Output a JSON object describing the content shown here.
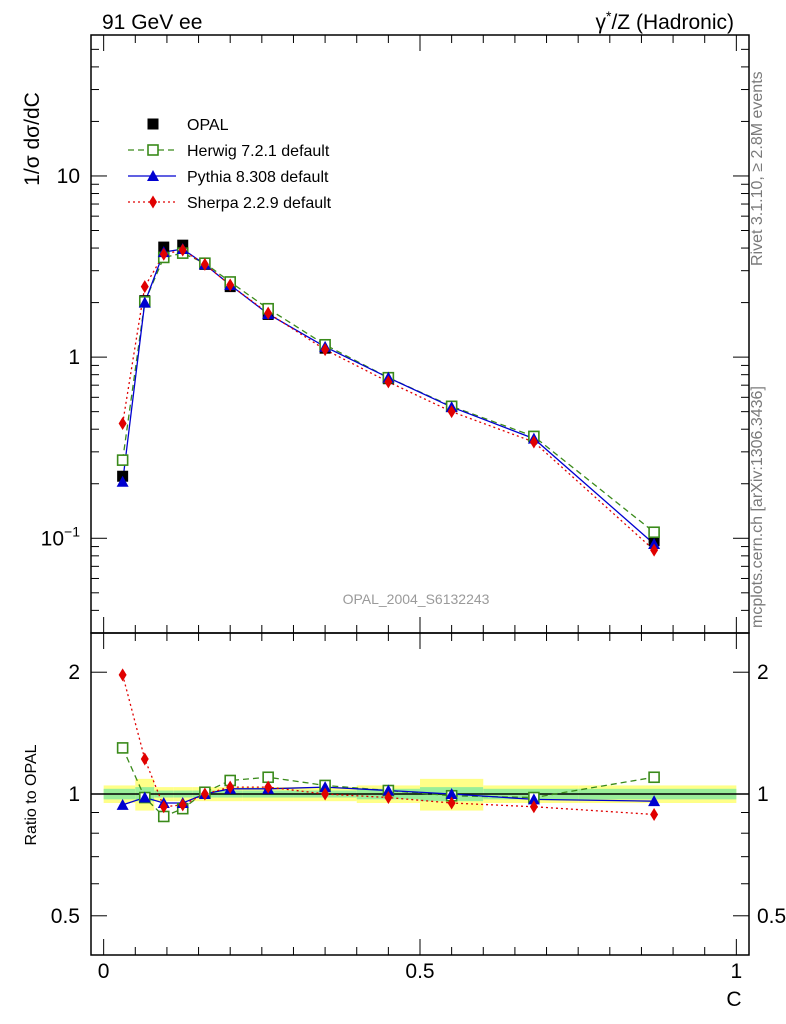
{
  "header": {
    "left_title": "91 GeV ee",
    "right_title_prefix": "γ",
    "right_title_sup": "*",
    "right_title_suffix": "/Z (Hadronic)"
  },
  "side_text": {
    "top": "Rivet 3.1.10, ≥ 2.8M events",
    "bottom": "mcplots.cern.ch [arXiv:1306.3436]"
  },
  "watermark": "OPAL_2004_S6132243",
  "chart_data": [
    {
      "type": "line",
      "panel": "main",
      "ylabel": "1/σ dσ/dC",
      "yscale": "log",
      "ylim": [
        0.03,
        60
      ],
      "xlim": [
        -0.02,
        1.02
      ],
      "yticks": [
        {
          "value": 10,
          "label": "10"
        },
        {
          "value": 1,
          "label": "1"
        },
        {
          "value": 0.1,
          "label": "10",
          "sup": "−1"
        }
      ],
      "legend": {
        "position": "top-left"
      },
      "series": [
        {
          "name": "OPAL",
          "color": "#000000",
          "marker": "square",
          "line": "none",
          "x": [
            0.03,
            0.065,
            0.095,
            0.125,
            0.16,
            0.2,
            0.26,
            0.35,
            0.45,
            0.55,
            0.68,
            0.87
          ],
          "values": [
            0.22,
            2.05,
            4.05,
            4.15,
            3.25,
            2.45,
            1.72,
            1.12,
            0.76,
            0.535,
            0.365,
            0.097
          ]
        },
        {
          "name": "Herwig 7.2.1 default",
          "color": "#3a8a1a",
          "marker": "open-square",
          "line": "dashed",
          "x": [
            0.03,
            0.065,
            0.095,
            0.125,
            0.16,
            0.2,
            0.26,
            0.35,
            0.45,
            0.55,
            0.68,
            0.87
          ],
          "values": [
            0.27,
            2.02,
            3.55,
            3.75,
            3.3,
            2.6,
            1.85,
            1.17,
            0.77,
            0.535,
            0.365,
            0.108
          ]
        },
        {
          "name": "Pythia 8.308 default",
          "color": "#0000d0",
          "marker": "triangle",
          "line": "solid",
          "x": [
            0.03,
            0.065,
            0.095,
            0.125,
            0.16,
            0.2,
            0.26,
            0.35,
            0.45,
            0.55,
            0.68,
            0.87
          ],
          "values": [
            0.205,
            2.0,
            3.8,
            3.95,
            3.25,
            2.5,
            1.73,
            1.14,
            0.77,
            0.53,
            0.355,
            0.093
          ]
        },
        {
          "name": "Sherpa 2.2.9 default",
          "color": "#e00000",
          "marker": "diamond",
          "line": "dotted",
          "x": [
            0.03,
            0.065,
            0.095,
            0.125,
            0.16,
            0.2,
            0.26,
            0.35,
            0.45,
            0.55,
            0.68,
            0.87
          ],
          "values": [
            0.43,
            2.45,
            3.7,
            3.9,
            3.25,
            2.5,
            1.75,
            1.1,
            0.73,
            0.5,
            0.34,
            0.086
          ]
        }
      ]
    },
    {
      "type": "line",
      "panel": "ratio",
      "ylabel": "Ratio to OPAL",
      "xlabel": "C",
      "yscale": "log",
      "ylim": [
        0.4,
        2.5
      ],
      "xlim": [
        -0.02,
        1.02
      ],
      "yticks": [
        {
          "value": 2,
          "label": "2"
        },
        {
          "value": 1,
          "label": "1"
        },
        {
          "value": 0.5,
          "label": "0.5"
        }
      ],
      "xticks": [
        {
          "value": 0,
          "label": "0"
        },
        {
          "value": 0.5,
          "label": "0.5"
        },
        {
          "value": 1,
          "label": "1"
        }
      ],
      "uncertainty_bands": [
        {
          "x0": 0.0,
          "x1": 0.05,
          "stat": 0.03,
          "total": 0.05
        },
        {
          "x0": 0.05,
          "x1": 0.08,
          "stat": 0.04,
          "total": 0.09
        },
        {
          "x0": 0.08,
          "x1": 0.11,
          "stat": 0.02,
          "total": 0.04
        },
        {
          "x0": 0.11,
          "x1": 0.14,
          "stat": 0.02,
          "total": 0.04
        },
        {
          "x0": 0.14,
          "x1": 0.18,
          "stat": 0.02,
          "total": 0.04
        },
        {
          "x0": 0.18,
          "x1": 0.22,
          "stat": 0.02,
          "total": 0.04
        },
        {
          "x0": 0.22,
          "x1": 0.3,
          "stat": 0.02,
          "total": 0.04
        },
        {
          "x0": 0.3,
          "x1": 0.4,
          "stat": 0.02,
          "total": 0.04
        },
        {
          "x0": 0.4,
          "x1": 0.5,
          "stat": 0.03,
          "total": 0.05
        },
        {
          "x0": 0.5,
          "x1": 0.6,
          "stat": 0.04,
          "total": 0.09
        },
        {
          "x0": 0.6,
          "x1": 0.75,
          "stat": 0.03,
          "total": 0.05
        },
        {
          "x0": 0.75,
          "x1": 1.0,
          "stat": 0.03,
          "total": 0.05
        }
      ],
      "series": [
        {
          "name": "Herwig 7.2.1 default",
          "color": "#3a8a1a",
          "marker": "open-square",
          "line": "dashed",
          "x": [
            0.03,
            0.065,
            0.095,
            0.125,
            0.16,
            0.2,
            0.26,
            0.35,
            0.45,
            0.55,
            0.68,
            0.87
          ],
          "values": [
            1.3,
            0.98,
            0.88,
            0.92,
            1.01,
            1.08,
            1.1,
            1.05,
            1.02,
            0.99,
            0.98,
            1.1
          ]
        },
        {
          "name": "Pythia 8.308 default",
          "color": "#0000d0",
          "marker": "triangle",
          "line": "solid",
          "x": [
            0.03,
            0.065,
            0.095,
            0.125,
            0.16,
            0.2,
            0.26,
            0.35,
            0.45,
            0.55,
            0.68,
            0.87
          ],
          "values": [
            0.94,
            0.98,
            0.95,
            0.95,
            1.0,
            1.03,
            1.03,
            1.04,
            1.02,
            1.0,
            0.97,
            0.96
          ]
        },
        {
          "name": "Sherpa 2.2.9 default",
          "color": "#e00000",
          "marker": "diamond",
          "line": "dotted",
          "x": [
            0.03,
            0.065,
            0.095,
            0.125,
            0.16,
            0.2,
            0.26,
            0.35,
            0.45,
            0.55,
            0.68,
            0.87
          ],
          "values": [
            1.97,
            1.22,
            0.93,
            0.94,
            1.0,
            1.04,
            1.04,
            1.0,
            0.98,
            0.95,
            0.93,
            0.89
          ]
        }
      ]
    }
  ]
}
